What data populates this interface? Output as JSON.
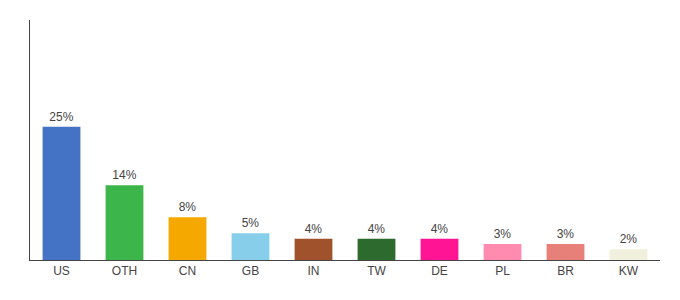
{
  "chart_data": {
    "type": "bar",
    "categories": [
      "US",
      "OTH",
      "CN",
      "GB",
      "IN",
      "TW",
      "DE",
      "PL",
      "BR",
      "KW"
    ],
    "values": [
      25,
      14,
      8,
      5,
      4,
      4,
      4,
      3,
      3,
      2
    ],
    "value_labels": [
      "25%",
      "14%",
      "8%",
      "5%",
      "4%",
      "4%",
      "4%",
      "3%",
      "3%",
      "2%"
    ],
    "data_labels": true,
    "colors": [
      "#4472c4",
      "#3cb54a",
      "#f5a800",
      "#87ceeb",
      "#a0522d",
      "#2d6a2d",
      "#ff1493",
      "#ff8cb0",
      "#e8807a",
      "#f0f0dc"
    ],
    "ylim": [
      0,
      45
    ],
    "grid": false,
    "tick_labels": "x"
  }
}
